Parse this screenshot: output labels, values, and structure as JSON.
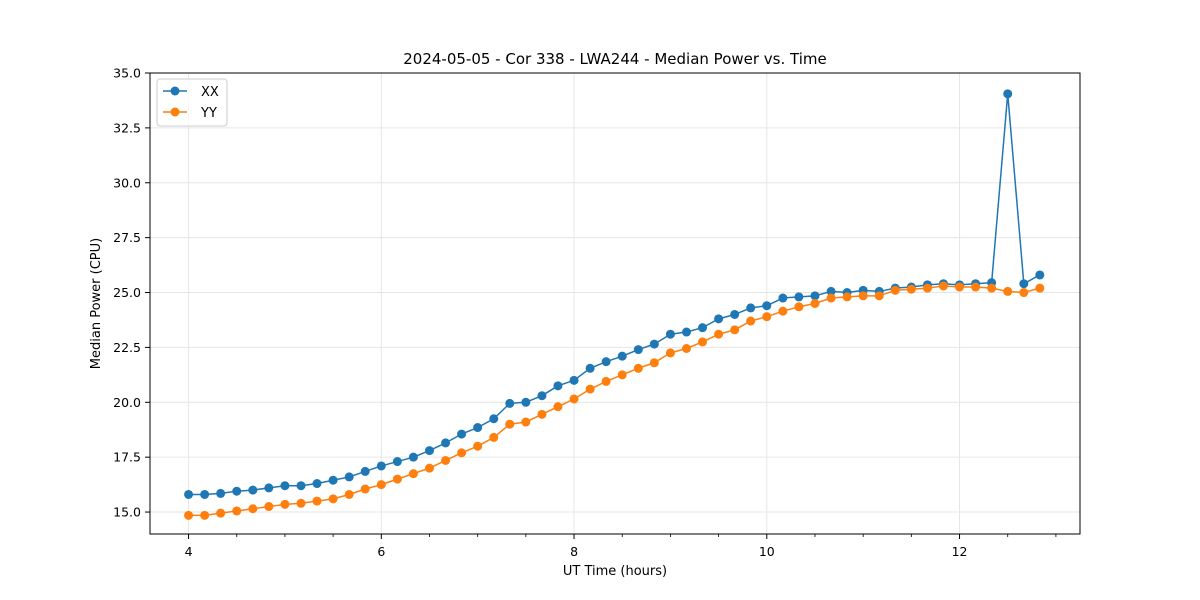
{
  "chart_data": {
    "type": "line",
    "title": "2024-05-05 - Cor 338 - LWA244 - Median Power vs. Time",
    "xlabel": "UT Time (hours)",
    "ylabel": "Median Power (CPU)",
    "xlim": [
      3.6,
      13.25
    ],
    "ylim": [
      14.0,
      35.0
    ],
    "x_ticks": [
      4,
      6,
      8,
      10,
      12
    ],
    "x_tick_labels": [
      "4",
      "6",
      "8",
      "10",
      "12"
    ],
    "y_ticks": [
      15.0,
      17.5,
      20.0,
      22.5,
      25.0,
      27.5,
      30.0,
      32.5,
      35.0
    ],
    "y_tick_labels": [
      "15.0",
      "17.5",
      "20.0",
      "22.5",
      "25.0",
      "27.5",
      "30.0",
      "32.5",
      "35.0"
    ],
    "grid": true,
    "legend_position": "top-left",
    "x": [
      4.0,
      4.167,
      4.333,
      4.5,
      4.667,
      4.833,
      5.0,
      5.167,
      5.333,
      5.5,
      5.667,
      5.833,
      6.0,
      6.167,
      6.333,
      6.5,
      6.667,
      6.833,
      7.0,
      7.167,
      7.333,
      7.5,
      7.667,
      7.833,
      8.0,
      8.167,
      8.333,
      8.5,
      8.667,
      8.833,
      9.0,
      9.167,
      9.333,
      9.5,
      9.667,
      9.833,
      10.0,
      10.167,
      10.333,
      10.5,
      10.667,
      10.833,
      11.0,
      11.167,
      11.333,
      11.5,
      11.667,
      11.833,
      12.0,
      12.167,
      12.333,
      12.5,
      12.667,
      12.833
    ],
    "series": [
      {
        "name": "XX",
        "color": "#1f77b4",
        "values": [
          15.8,
          15.8,
          15.85,
          15.95,
          16.0,
          16.1,
          16.2,
          16.2,
          16.3,
          16.45,
          16.6,
          16.85,
          17.1,
          17.3,
          17.5,
          17.8,
          18.15,
          18.55,
          18.85,
          19.25,
          19.95,
          20.0,
          20.3,
          20.75,
          21.0,
          21.55,
          21.85,
          22.1,
          22.4,
          22.65,
          23.1,
          23.2,
          23.4,
          23.8,
          24.0,
          24.3,
          24.4,
          24.75,
          24.8,
          24.85,
          25.05,
          25.0,
          25.1,
          25.05,
          25.2,
          25.25,
          25.35,
          25.4,
          25.35,
          25.4,
          25.45,
          34.05,
          25.4,
          25.8
        ]
      },
      {
        "name": "YY",
        "color": "#ff7f0e",
        "values": [
          14.85,
          14.85,
          14.95,
          15.05,
          15.15,
          15.25,
          15.35,
          15.4,
          15.5,
          15.6,
          15.8,
          16.05,
          16.25,
          16.5,
          16.75,
          17.0,
          17.35,
          17.7,
          18.0,
          18.4,
          19.0,
          19.1,
          19.45,
          19.8,
          20.15,
          20.6,
          20.95,
          21.25,
          21.55,
          21.8,
          22.25,
          22.45,
          22.75,
          23.1,
          23.3,
          23.7,
          23.9,
          24.15,
          24.35,
          24.5,
          24.75,
          24.8,
          24.85,
          24.85,
          25.1,
          25.15,
          25.2,
          25.3,
          25.25,
          25.25,
          25.2,
          25.05,
          25.0,
          25.2
        ]
      }
    ]
  }
}
